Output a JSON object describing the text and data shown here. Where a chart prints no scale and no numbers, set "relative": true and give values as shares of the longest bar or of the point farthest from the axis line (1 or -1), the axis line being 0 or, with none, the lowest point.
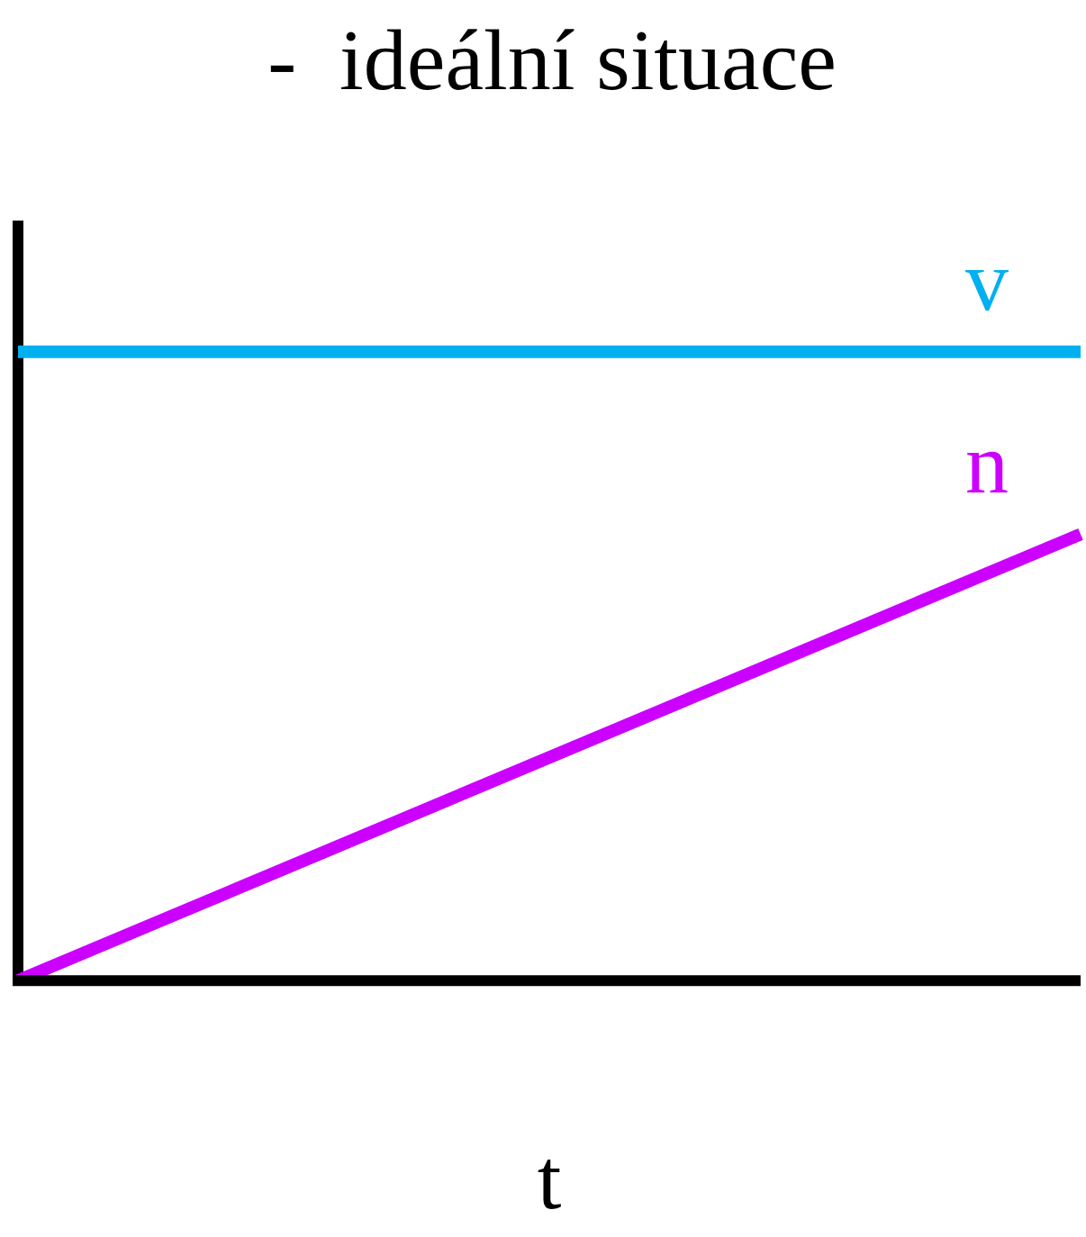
{
  "chart_data": {
    "type": "line",
    "title": "-  ideální situace",
    "xlabel": "t",
    "relative": true,
    "categories": [
      null,
      null
    ],
    "series": [
      {
        "name": "v",
        "color": "#00b0f0",
        "values": [
          1,
          1
        ]
      },
      {
        "name": "n",
        "color": "#cc00ff",
        "values": [
          0,
          0.71
        ]
      }
    ],
    "ref_lines": [
      {
        "axis": "y",
        "value": 0,
        "color": "#000000"
      }
    ],
    "grid": false,
    "legend": false,
    "marker": "none"
  }
}
